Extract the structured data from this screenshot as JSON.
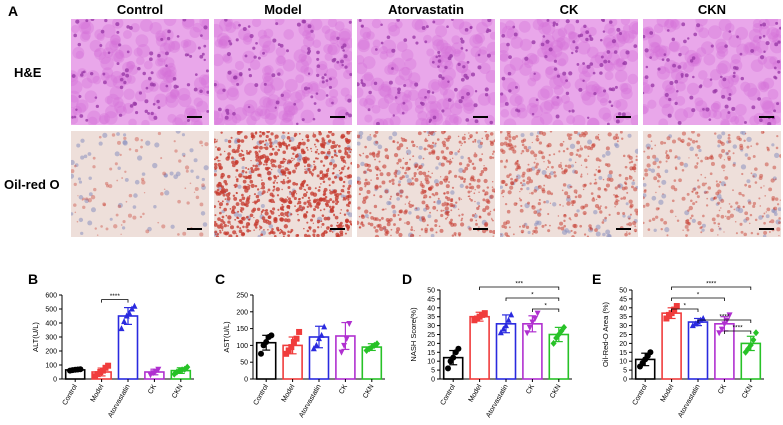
{
  "panel_letters": {
    "A": "A",
    "B": "B",
    "C": "C",
    "D": "D",
    "E": "E"
  },
  "groups": [
    "Control",
    "Model",
    "Atorvastatin",
    "CK",
    "CKN"
  ],
  "row_labels": {
    "he": "H&E",
    "oil": "Oil-red O"
  },
  "colors": {
    "Control": "#000000",
    "Model": "#f03c3c",
    "Atorvastatin": "#2a2adf",
    "CK": "#b030d0",
    "CKN": "#27c227"
  },
  "micrographs": {
    "he": {
      "stain": "hematoxylin-eosin liver section",
      "base": "#e9a7ea",
      "cells": "#d570d8",
      "nuclei": "#9a3aa8"
    },
    "oil": {
      "stain": "oil red O liver section",
      "base": "#eedfda",
      "droplets": "#c63a2e",
      "nuclei": "#8a90c0",
      "lipid_level": [
        0.05,
        0.85,
        0.45,
        0.35,
        0.25
      ]
    }
  },
  "chart_data": [
    {
      "type": "bar",
      "panel": "B",
      "categories": [
        "Control",
        "Model",
        "Atorvastatin",
        "CK",
        "CKN"
      ],
      "ylabel": "ALT(U/L)",
      "ylim": [
        0,
        600
      ],
      "yticks": [
        0,
        100,
        200,
        300,
        400,
        500,
        600
      ],
      "values": [
        65,
        50,
        450,
        50,
        60
      ],
      "errors": [
        8,
        28,
        60,
        20,
        20
      ],
      "points": [
        [
          60,
          63,
          66,
          68,
          70
        ],
        [
          20,
          35,
          50,
          60,
          80,
          95
        ],
        [
          360,
          410,
          450,
          470,
          500,
          520
        ],
        [
          30,
          45,
          55,
          70
        ],
        [
          35,
          50,
          60,
          65,
          70,
          85
        ]
      ],
      "significance": [
        {
          "pair": [
            1,
            2
          ],
          "label": "****"
        }
      ]
    },
    {
      "type": "bar",
      "panel": "C",
      "categories": [
        "Control",
        "Model",
        "Atorvastatin",
        "CK",
        "CKN"
      ],
      "ylabel": "AST(U/L)",
      "ylim": [
        0,
        250
      ],
      "yticks": [
        0,
        50,
        100,
        150,
        200,
        250
      ],
      "values": [
        108,
        100,
        125,
        128,
        95
      ],
      "errors": [
        22,
        25,
        32,
        40,
        10
      ],
      "points": [
        [
          75,
          100,
          110,
          125,
          130
        ],
        [
          75,
          85,
          95,
          110,
          120,
          140
        ],
        [
          90,
          100,
          120,
          130,
          155
        ],
        [
          80,
          100,
          120,
          165
        ],
        [
          85,
          90,
          95,
          100,
          105
        ]
      ],
      "significance": []
    },
    {
      "type": "bar",
      "panel": "D",
      "categories": [
        "Control",
        "Model",
        "Atorvastatin",
        "CK",
        "CKN"
      ],
      "ylabel": "NASH Score(%)",
      "ylim": [
        0,
        50
      ],
      "yticks": [
        0,
        5,
        10,
        15,
        20,
        25,
        30,
        35,
        40,
        45,
        50
      ],
      "values": [
        12,
        35,
        31,
        31,
        25
      ],
      "errors": [
        4,
        2.5,
        5,
        4.5,
        4
      ],
      "points": [
        [
          6,
          10,
          12,
          15,
          17
        ],
        [
          33,
          34,
          35,
          36,
          37
        ],
        [
          26,
          28,
          30,
          33,
          36
        ],
        [
          26,
          29,
          32,
          34,
          37
        ],
        [
          20,
          23,
          25,
          27,
          29
        ]
      ],
      "significance": [
        {
          "pair": [
            1,
            4
          ],
          "label": "***"
        },
        {
          "pair": [
            2,
            4
          ],
          "label": "*"
        },
        {
          "pair": [
            3,
            4
          ],
          "label": "*"
        }
      ]
    },
    {
      "type": "bar",
      "panel": "E",
      "categories": [
        "Control",
        "Model",
        "Atorvastatin",
        "CK",
        "CKN"
      ],
      "ylabel": "Oil-Red-O Area (%)",
      "ylim": [
        0,
        50
      ],
      "yticks": [
        0,
        5,
        10,
        15,
        20,
        25,
        30,
        35,
        40,
        45,
        50
      ],
      "values": [
        11,
        37,
        32,
        31,
        20
      ],
      "errors": [
        3.5,
        3,
        2,
        4,
        4
      ],
      "points": [
        [
          7,
          9,
          11,
          13,
          15
        ],
        [
          34,
          36,
          37,
          39,
          41
        ],
        [
          30,
          31,
          32,
          33,
          34
        ],
        [
          26,
          28,
          31,
          33,
          36
        ],
        [
          15,
          17,
          19,
          22,
          26
        ]
      ],
      "significance": [
        {
          "pair": [
            1,
            4
          ],
          "label": "****"
        },
        {
          "pair": [
            1,
            3
          ],
          "label": "*"
        },
        {
          "pair": [
            1,
            2
          ],
          "label": "*"
        },
        {
          "pair": [
            2,
            4
          ],
          "label": "****"
        },
        {
          "pair": [
            3,
            4
          ],
          "label": "****"
        }
      ]
    }
  ]
}
